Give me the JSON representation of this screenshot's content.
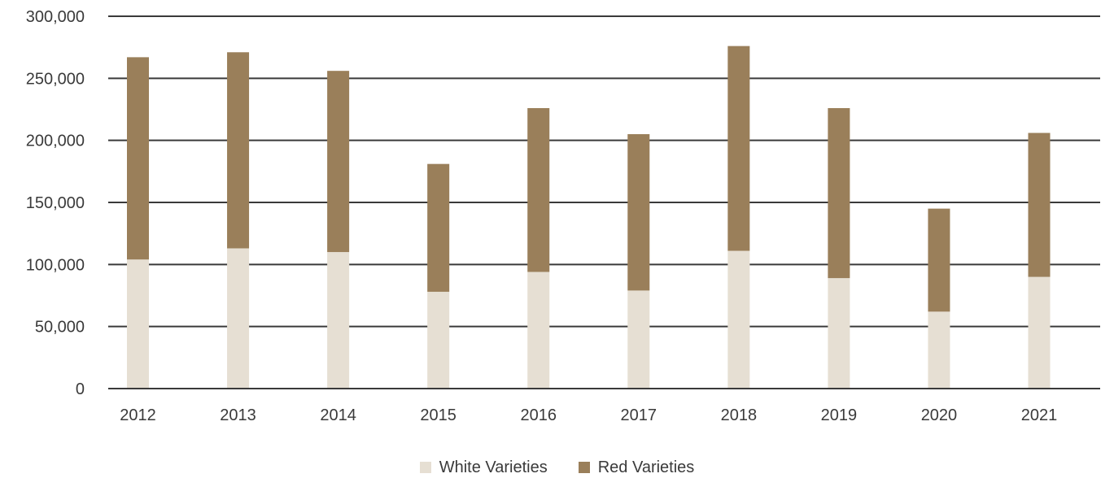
{
  "chart_data": {
    "type": "bar",
    "stacked": true,
    "title": "",
    "xlabel": "",
    "ylabel": "",
    "categories": [
      "2012",
      "2013",
      "2014",
      "2015",
      "2016",
      "2017",
      "2018",
      "2019",
      "2020",
      "2021"
    ],
    "series": [
      {
        "name": "White Varieties",
        "color": "#e6dfd3",
        "values": [
          104000,
          113000,
          110000,
          78000,
          94000,
          79000,
          111000,
          89000,
          62000,
          90000
        ]
      },
      {
        "name": "Red Varieties",
        "color": "#9a7f5a",
        "values": [
          163000,
          158000,
          146000,
          103000,
          132000,
          126000,
          165000,
          137000,
          83000,
          116000
        ]
      }
    ],
    "ylim": [
      0,
      300000
    ],
    "yticks": [
      0,
      50000,
      100000,
      150000,
      200000,
      250000,
      300000
    ],
    "ytick_labels": [
      "0",
      "50,000",
      "100,000",
      "150,000",
      "200,000",
      "250,000",
      "300,000"
    ],
    "grid": true,
    "legend_position": "bottom-center",
    "gridline_color": "#3a3a3a"
  }
}
